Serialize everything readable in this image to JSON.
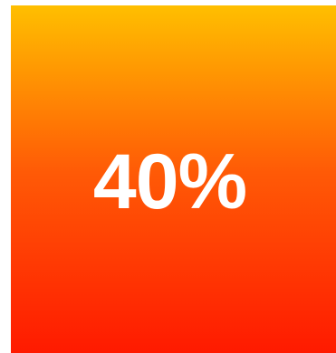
{
  "tile": {
    "value_label": "40%",
    "colors": {
      "gradient_top": "#ffbf00",
      "gradient_mid": "#ff5a06",
      "gradient_bottom": "#ff1a00",
      "text": "#ffffff"
    }
  }
}
